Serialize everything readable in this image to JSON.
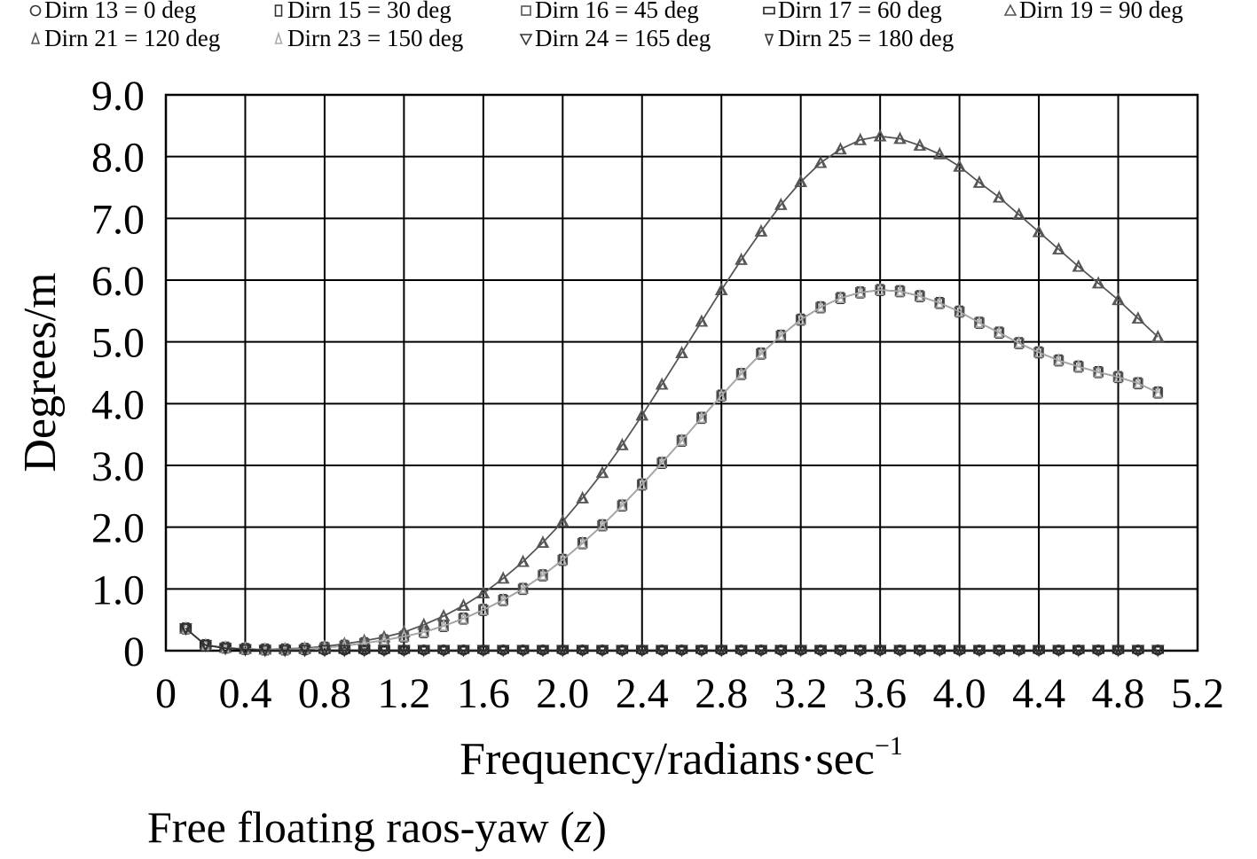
{
  "chart_data": {
    "type": "line",
    "title": "",
    "caption": "Free floating raos-yaw (",
    "caption_var": "z",
    "caption_close": ")",
    "xlabel": "Frequency/radians·sec",
    "xlabel_sup": "−1",
    "ylabel": "Degrees/m",
    "xlim": [
      0,
      5.2
    ],
    "ylim": [
      0,
      9.0
    ],
    "x_ticks": [
      "0",
      "0.4",
      "0.8",
      "1.2",
      "1.6",
      "2.0",
      "2.4",
      "2.8",
      "3.2",
      "3.6",
      "4.0",
      "4.4",
      "4.8",
      "5.2"
    ],
    "y_ticks": [
      "0",
      "1.0",
      "2.0",
      "3.0",
      "4.0",
      "5.0",
      "6.0",
      "7.0",
      "8.0",
      "9.0"
    ],
    "grid": true,
    "legend_position": "top",
    "x": [
      0.1,
      0.2,
      0.3,
      0.4,
      0.5,
      0.6,
      0.7,
      0.8,
      0.9,
      1.0,
      1.1,
      1.2,
      1.3,
      1.4,
      1.5,
      1.6,
      1.7,
      1.8,
      1.9,
      2.0,
      2.1,
      2.2,
      2.3,
      2.4,
      2.5,
      2.6,
      2.7,
      2.8,
      2.9,
      3.0,
      3.1,
      3.2,
      3.3,
      3.4,
      3.5,
      3.6,
      3.7,
      3.8,
      3.9,
      4.0,
      4.1,
      4.2,
      4.3,
      4.4,
      4.5,
      4.6,
      4.7,
      4.8,
      4.9,
      5.0
    ],
    "series": [
      {
        "name": "Dirn 13 = 0 deg",
        "marker": "circle",
        "color": "#333333",
        "values": [
          0.36,
          0.09,
          0.04,
          0.02,
          0.01,
          0.01,
          0.01,
          0.01,
          0.01,
          0.01,
          0.01,
          0.01,
          0.01,
          0.01,
          0.01,
          0.01,
          0.01,
          0.01,
          0.01,
          0.01,
          0.01,
          0.01,
          0.01,
          0.01,
          0.01,
          0.01,
          0.01,
          0.01,
          0.01,
          0.01,
          0.01,
          0.01,
          0.01,
          0.01,
          0.01,
          0.01,
          0.01,
          0.01,
          0.01,
          0.01,
          0.01,
          0.01,
          0.01,
          0.01,
          0.01,
          0.01,
          0.01,
          0.01,
          0.01,
          0.01
        ]
      },
      {
        "name": "Dirn 15 = 30 deg",
        "marker": "rect-tall",
        "color": "#333333",
        "values": [
          0.36,
          0.09,
          0.05,
          0.03,
          0.02,
          0.02,
          0.03,
          0.05,
          0.08,
          0.12,
          0.17,
          0.23,
          0.3,
          0.4,
          0.52,
          0.66,
          0.82,
          1.0,
          1.22,
          1.47,
          1.74,
          2.03,
          2.35,
          2.69,
          3.04,
          3.4,
          3.77,
          4.13,
          4.48,
          4.81,
          5.1,
          5.36,
          5.56,
          5.71,
          5.8,
          5.84,
          5.82,
          5.74,
          5.63,
          5.49,
          5.31,
          5.15,
          4.98,
          4.83,
          4.7,
          4.6,
          4.51,
          4.43,
          4.33,
          4.18
        ]
      },
      {
        "name": "Dirn 16 = 45 deg",
        "marker": "square",
        "color": "#555555",
        "values": [
          0.36,
          0.09,
          0.05,
          0.03,
          0.02,
          0.02,
          0.03,
          0.05,
          0.08,
          0.12,
          0.17,
          0.23,
          0.3,
          0.4,
          0.52,
          0.66,
          0.82,
          1.0,
          1.22,
          1.47,
          1.74,
          2.03,
          2.35,
          2.69,
          3.04,
          3.4,
          3.77,
          4.13,
          4.48,
          4.81,
          5.1,
          5.36,
          5.56,
          5.71,
          5.8,
          5.84,
          5.82,
          5.74,
          5.63,
          5.49,
          5.31,
          5.15,
          4.98,
          4.83,
          4.7,
          4.6,
          4.51,
          4.43,
          4.33,
          4.18
        ]
      },
      {
        "name": "Dirn 17 = 60 deg",
        "marker": "rect-wide",
        "color": "#222222",
        "values": [
          0.36,
          0.09,
          0.04,
          0.02,
          0.01,
          0.01,
          0.01,
          0.01,
          0.01,
          0.01,
          0.01,
          0.01,
          0.01,
          0.01,
          0.01,
          0.01,
          0.01,
          0.01,
          0.01,
          0.01,
          0.01,
          0.01,
          0.01,
          0.01,
          0.01,
          0.01,
          0.01,
          0.01,
          0.01,
          0.01,
          0.01,
          0.01,
          0.01,
          0.01,
          0.01,
          0.01,
          0.01,
          0.01,
          0.01,
          0.01,
          0.01,
          0.01,
          0.01,
          0.01,
          0.01,
          0.01,
          0.01,
          0.01,
          0.01,
          0.01
        ]
      },
      {
        "name": "Dirn 19 = 90 deg",
        "marker": "triangle",
        "color": "#555555",
        "values": [
          0.36,
          0.09,
          0.05,
          0.03,
          0.02,
          0.03,
          0.04,
          0.07,
          0.11,
          0.16,
          0.22,
          0.3,
          0.42,
          0.56,
          0.73,
          0.93,
          1.17,
          1.44,
          1.75,
          2.09,
          2.47,
          2.88,
          3.33,
          3.81,
          4.31,
          4.82,
          5.33,
          5.84,
          6.33,
          6.79,
          7.22,
          7.59,
          7.9,
          8.12,
          8.27,
          8.33,
          8.29,
          8.18,
          8.04,
          7.84,
          7.58,
          7.34,
          7.06,
          6.78,
          6.5,
          6.22,
          5.95,
          5.68,
          5.38,
          5.08
        ]
      },
      {
        "name": "Dirn 21 = 120 deg",
        "marker": "triangle-small",
        "color": "#555555",
        "values": [
          0.36,
          0.09,
          0.05,
          0.03,
          0.02,
          0.03,
          0.04,
          0.07,
          0.11,
          0.16,
          0.22,
          0.3,
          0.42,
          0.56,
          0.73,
          0.93,
          1.17,
          1.44,
          1.75,
          2.09,
          2.47,
          2.88,
          3.33,
          3.81,
          4.31,
          4.82,
          5.33,
          5.84,
          6.33,
          6.79,
          7.22,
          7.59,
          7.9,
          8.12,
          8.27,
          8.33,
          8.29,
          8.18,
          8.04,
          7.84,
          7.58,
          7.34,
          7.06,
          6.78,
          6.5,
          6.22,
          5.95,
          5.68,
          5.38,
          5.08
        ]
      },
      {
        "name": "Dirn 23 = 150 deg",
        "marker": "triangle-light",
        "color": "#aaaaaa",
        "values": [
          0.36,
          0.09,
          0.05,
          0.03,
          0.02,
          0.02,
          0.03,
          0.05,
          0.08,
          0.12,
          0.17,
          0.23,
          0.3,
          0.4,
          0.52,
          0.66,
          0.82,
          1.0,
          1.22,
          1.47,
          1.74,
          2.03,
          2.35,
          2.69,
          3.04,
          3.4,
          3.77,
          4.13,
          4.48,
          4.81,
          5.1,
          5.36,
          5.56,
          5.71,
          5.8,
          5.84,
          5.82,
          5.74,
          5.63,
          5.49,
          5.31,
          5.15,
          4.98,
          4.83,
          4.7,
          4.6,
          4.51,
          4.43,
          4.33,
          4.18
        ]
      },
      {
        "name": "Dirn 24 = 165 deg",
        "marker": "triangle-down",
        "color": "#333333",
        "values": [
          0.36,
          0.09,
          0.04,
          0.02,
          0.01,
          0.01,
          0.01,
          0.01,
          0.01,
          0.01,
          0.01,
          0.01,
          0.01,
          0.01,
          0.01,
          0.01,
          0.01,
          0.01,
          0.01,
          0.01,
          0.01,
          0.01,
          0.01,
          0.01,
          0.01,
          0.01,
          0.01,
          0.01,
          0.01,
          0.01,
          0.01,
          0.01,
          0.01,
          0.01,
          0.01,
          0.01,
          0.01,
          0.01,
          0.01,
          0.01,
          0.01,
          0.01,
          0.01,
          0.01,
          0.01,
          0.01,
          0.01,
          0.01,
          0.01,
          0.01
        ]
      },
      {
        "name": "Dirn 25 = 180 deg",
        "marker": "triangle-down-small",
        "color": "#333333",
        "values": [
          0.36,
          0.09,
          0.04,
          0.02,
          0.01,
          0.01,
          0.01,
          0.01,
          0.01,
          0.01,
          0.01,
          0.01,
          0.01,
          0.01,
          0.01,
          0.01,
          0.01,
          0.01,
          0.01,
          0.01,
          0.01,
          0.01,
          0.01,
          0.01,
          0.01,
          0.01,
          0.01,
          0.01,
          0.01,
          0.01,
          0.01,
          0.01,
          0.01,
          0.01,
          0.01,
          0.01,
          0.01,
          0.01,
          0.01,
          0.01,
          0.01,
          0.01,
          0.01,
          0.01,
          0.01,
          0.01,
          0.01,
          0.01,
          0.01,
          0.01
        ]
      }
    ]
  }
}
